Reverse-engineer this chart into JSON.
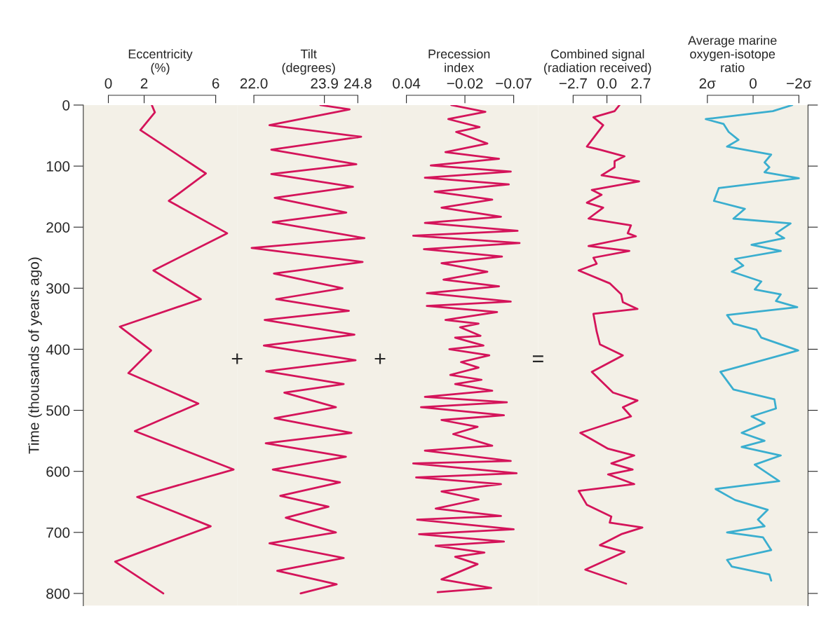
{
  "chart_data": [
    {
      "type": "line",
      "orientation": "horizontal",
      "xlabel": "Eccentricity\n(%)",
      "ylabel": "Time (thousands of years ago)",
      "xlim": [
        -1.4,
        7.2
      ],
      "xticks": [
        0,
        2,
        6
      ],
      "ylim": [
        820,
        0
      ],
      "yticks": [
        0,
        100,
        200,
        300,
        400,
        500,
        600,
        700,
        800
      ],
      "annotations": [
        "+"
      ],
      "series": [
        {
          "color": "#d4145a",
          "x": [
            0,
            12,
            41,
            112,
            157,
            210,
            271,
            318,
            363,
            402,
            439,
            489,
            534,
            597,
            642,
            690,
            748,
            800
          ],
          "values": [
            2.43,
            2.6,
            1.79,
            5.45,
            3.38,
            6.64,
            2.52,
            5.17,
            0.64,
            2.39,
            1.12,
            5.03,
            1.48,
            7.0,
            1.61,
            5.72,
            0.38,
            3.07
          ]
        }
      ]
    },
    {
      "type": "line",
      "orientation": "horizontal",
      "xlabel": "Tilt\n(degrees)",
      "xlim": [
        21.55,
        25.4
      ],
      "xticks": [
        {
          "value": 22.0,
          "label": "22.0"
        },
        {
          "value": 23.9,
          "label": "23.9"
        },
        {
          "value": 24.8,
          "label": "24.8"
        }
      ],
      "ylim": [
        820,
        0
      ],
      "tick_labels": "x",
      "annotations": [
        "+"
      ],
      "series": [
        {
          "color": "#d4145a",
          "x": [
            0,
            7,
            33,
            52,
            73,
            97,
            113,
            134,
            152,
            176,
            192,
            218,
            234,
            257,
            276,
            300,
            318,
            337,
            352,
            376,
            394,
            418,
            436,
            457,
            471,
            495,
            513,
            537,
            554,
            576,
            597,
            618,
            640,
            658,
            676,
            700,
            718,
            742,
            763,
            785,
            800
          ],
          "values": [
            23.79,
            24.58,
            22.42,
            24.89,
            22.47,
            24.76,
            22.47,
            24.67,
            22.56,
            24.49,
            22.51,
            24.98,
            21.94,
            24.93,
            22.54,
            24.39,
            22.6,
            24.56,
            22.29,
            24.71,
            22.27,
            24.74,
            22.33,
            24.42,
            22.82,
            24.21,
            22.56,
            24.63,
            22.32,
            24.48,
            22.51,
            24.32,
            22.71,
            24.01,
            22.86,
            24.21,
            22.42,
            24.42,
            22.63,
            24.23,
            23.26
          ]
        }
      ]
    },
    {
      "type": "line",
      "orientation": "horizontal",
      "xlabel": "Precession\nindex",
      "xlim": [
        0.067,
        -0.095
      ],
      "xticks": [
        {
          "value": 0.04,
          "label": "0.04"
        },
        {
          "value": -0.02,
          "label": "−0.02"
        },
        {
          "value": -0.07,
          "label": "−0.07"
        }
      ],
      "ylim": [
        820,
        0
      ],
      "tick_labels": "x",
      "annotations": [
        "="
      ],
      "series": [
        {
          "color": "#d4145a",
          "x": [
            0,
            11,
            23,
            36,
            44,
            63,
            77,
            88,
            99,
            109,
            119,
            130,
            142,
            155,
            168,
            183,
            193,
            206,
            214,
            226,
            236,
            248,
            259,
            273,
            286,
            297,
            308,
            322,
            329,
            339,
            352,
            358,
            364,
            378,
            381,
            394,
            400,
            410,
            421,
            430,
            442,
            450,
            457,
            468,
            478,
            487,
            495,
            508,
            516,
            527,
            539,
            558,
            566,
            583,
            587,
            603,
            610,
            621,
            633,
            646,
            661,
            673,
            679,
            695,
            703,
            715,
            722,
            733,
            740,
            752,
            777,
            791,
            798
          ],
          "values": [
            -0.006,
            -0.041,
            -0.003,
            -0.035,
            -0.011,
            -0.043,
            0.0,
            -0.055,
            0.015,
            -0.067,
            0.021,
            -0.065,
            0.011,
            -0.048,
            0.004,
            -0.057,
            0.021,
            -0.074,
            0.033,
            -0.076,
            0.022,
            -0.058,
            0.004,
            -0.043,
            0.002,
            -0.055,
            0.019,
            -0.067,
            0.019,
            -0.053,
            0.0,
            -0.034,
            -0.015,
            -0.036,
            -0.01,
            -0.039,
            -0.004,
            -0.045,
            -0.016,
            -0.034,
            -0.005,
            -0.037,
            -0.01,
            -0.048,
            0.021,
            -0.063,
            0.025,
            -0.06,
            0.004,
            -0.033,
            -0.008,
            -0.048,
            0.021,
            -0.067,
            0.033,
            -0.073,
            0.03,
            -0.057,
            0.004,
            -0.034,
            0.01,
            -0.057,
            0.029,
            -0.07,
            0.027,
            -0.06,
            0.01,
            -0.04,
            -0.01,
            -0.033,
            0.004,
            -0.047,
            0.008
          ]
        }
      ]
    },
    {
      "type": "line",
      "orientation": "horizontal",
      "xlabel": "Combined signal\n(radiation received)",
      "xlim": [
        -5.5,
        4.0
      ],
      "xticks": [
        {
          "value": -2.7,
          "label": "−2.7"
        },
        {
          "value": 0.0,
          "label": "0.0"
        },
        {
          "value": 2.7,
          "label": "2.7"
        }
      ],
      "ylim": [
        820,
        0
      ],
      "tick_labels": "x",
      "series": [
        {
          "color": "#d4145a",
          "x": [
            0,
            10,
            20,
            33,
            68,
            73,
            84,
            92,
            102,
            115,
            125,
            139,
            147,
            160,
            168,
            186,
            197,
            210,
            215,
            231,
            239,
            250,
            260,
            271,
            292,
            310,
            323,
            334,
            342,
            371,
            392,
            410,
            437,
            471,
            484,
            495,
            510,
            537,
            563,
            574,
            587,
            597,
            605,
            621,
            632,
            655,
            674,
            684,
            692,
            703,
            721,
            732,
            761,
            784
          ],
          "values": [
            1.0,
            0.61,
            -1.08,
            -0.3,
            -1.6,
            -0.56,
            1.4,
            0.61,
            0.61,
            -0.43,
            2.57,
            -1.21,
            -0.43,
            -1.6,
            -0.3,
            -1.47,
            1.92,
            1.66,
            2.31,
            -1.47,
            1.79,
            -1.08,
            -0.82,
            -2.26,
            0.22,
            1.14,
            1.27,
            2.44,
            -1.08,
            -0.82,
            -0.56,
            1.27,
            -1.21,
            0.48,
            2.44,
            1.27,
            1.92,
            -2.13,
            0.09,
            2.18,
            0.35,
            2.05,
            0.09,
            2.18,
            -2.26,
            -1.6,
            0.35,
            0.22,
            2.83,
            1.14,
            -0.56,
            1.4,
            -1.73,
            1.53
          ]
        }
      ]
    },
    {
      "type": "line",
      "orientation": "horizontal",
      "xlabel": "Average marine\noxygen-isotope\nratio",
      "xlim": [
        4.2,
        -2.4
      ],
      "xticks": [
        {
          "value": 2,
          "label": "2σ"
        },
        0,
        {
          "value": -2,
          "label": "−2σ"
        }
      ],
      "ylim": [
        820,
        0
      ],
      "tick_labels": "x",
      "series": [
        {
          "color": "#3aaecf",
          "x": [
            0,
            10,
            23,
            31,
            44,
            57,
            68,
            81,
            94,
            102,
            110,
            120,
            136,
            157,
            170,
            186,
            194,
            210,
            218,
            229,
            239,
            252,
            263,
            273,
            289,
            302,
            310,
            321,
            331,
            344,
            358,
            368,
            381,
            402,
            437,
            466,
            482,
            497,
            510,
            521,
            537,
            550,
            560,
            574,
            589,
            616,
            629,
            647,
            663,
            679,
            690,
            700,
            708,
            729,
            745,
            756,
            769,
            779
          ],
          "values": [
            -1.71,
            -0.86,
            2.07,
            1.29,
            1.07,
            0.64,
            1.14,
            -0.79,
            -0.5,
            -0.71,
            -0.5,
            -2.0,
            1.5,
            1.71,
            0.36,
            0.86,
            -1.64,
            -1.0,
            -1.36,
            0.07,
            -1.21,
            0.79,
            0.43,
            0.93,
            -0.36,
            -0.07,
            -1.21,
            -1.0,
            -1.93,
            1.14,
            0.86,
            -0.14,
            -0.36,
            -1.97,
            1.43,
            0.86,
            -0.93,
            -1.0,
            0.07,
            -0.5,
            0.5,
            -0.5,
            0.5,
            -1.21,
            -0.07,
            -1.14,
            1.64,
            0.79,
            -0.64,
            -0.21,
            -0.5,
            1.14,
            -0.43,
            -0.79,
            1.14,
            0.93,
            -0.71,
            -0.79
          ]
        }
      ]
    }
  ]
}
